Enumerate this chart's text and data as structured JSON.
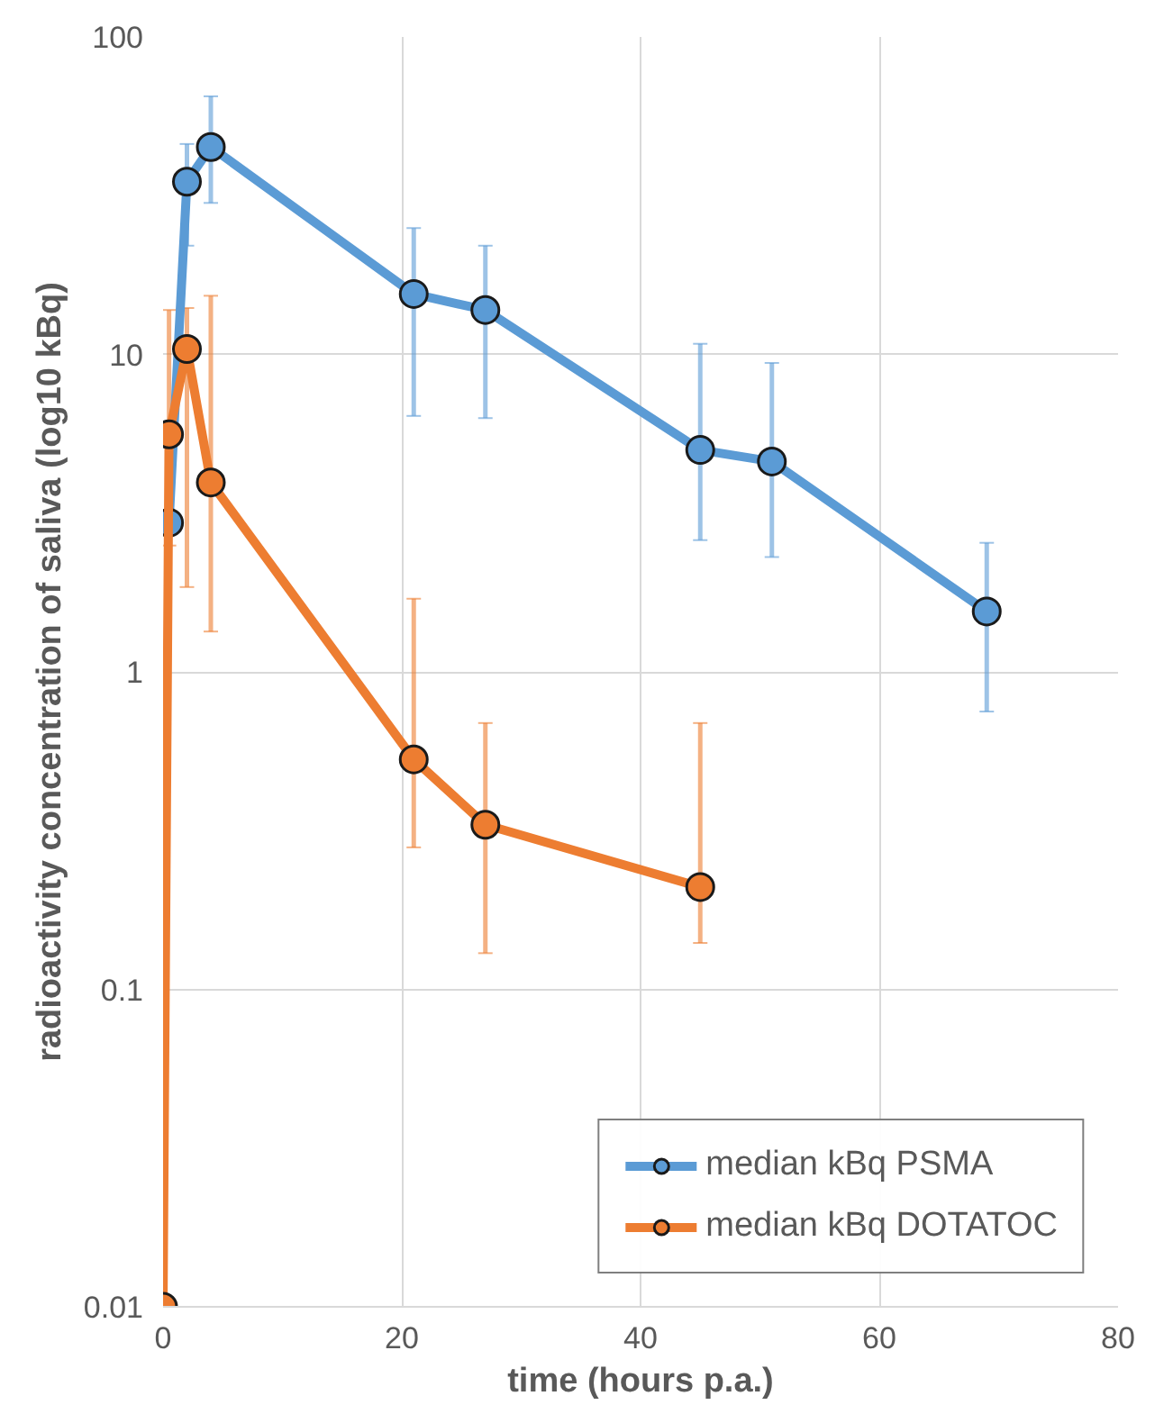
{
  "chart_data": {
    "type": "line",
    "xlabel": "time (hours p.a.)",
    "ylabel": "radioactivity concentration of saliva (log10 kBq)",
    "log": "y",
    "xlim": [
      0,
      80
    ],
    "xticks": [
      0,
      20,
      40,
      60,
      80
    ],
    "ylim": [
      0.01,
      100
    ],
    "yticks": [
      0.01,
      0.1,
      1,
      10,
      100
    ],
    "grid": true,
    "legend": "bottom right",
    "marker": "circle",
    "line_style": "solid",
    "series": [
      {
        "name": "median kBq PSMA",
        "color": "#5b9bd5",
        "x": [
          0.5,
          2,
          4,
          21,
          27,
          45,
          51,
          69
        ],
        "values": [
          2.95,
          35,
          45,
          15.5,
          13.8,
          5.0,
          4.6,
          1.55
        ],
        "errors": [
          null,
          [
            22,
            46
          ],
          [
            30,
            65
          ],
          [
            6.4,
            25
          ],
          [
            6.3,
            22
          ],
          [
            2.6,
            10.8
          ],
          [
            2.3,
            9.4
          ],
          [
            0.75,
            2.55
          ]
        ]
      },
      {
        "name": "median kBq DOTATOC",
        "color": "#ed7d31",
        "x": [
          0,
          0.5,
          2,
          4,
          21,
          27,
          45
        ],
        "values": [
          0.01,
          5.6,
          10.4,
          3.95,
          0.53,
          0.33,
          0.21
        ],
        "errors": [
          null,
          [
            2.5,
            13.8
          ],
          [
            1.85,
            14
          ],
          [
            1.34,
            15.3
          ],
          [
            0.28,
            1.7
          ],
          [
            0.13,
            0.69
          ],
          [
            0.14,
            0.69
          ]
        ]
      }
    ]
  }
}
